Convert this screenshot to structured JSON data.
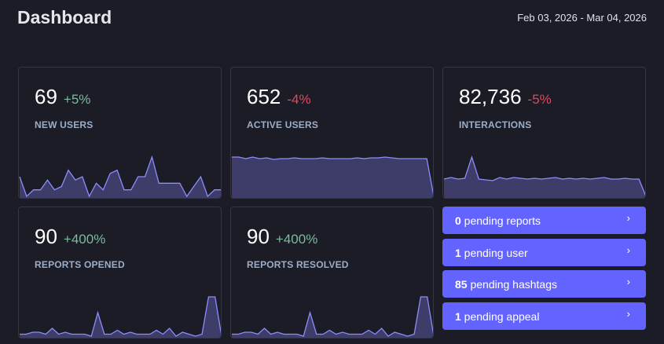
{
  "header": {
    "title": "Dashboard",
    "date_range": "Feb 03, 2026 - Mar 04, 2026"
  },
  "colors": {
    "accent": "#6364ff",
    "positive": "#79bd9a",
    "negative": "#e2475e",
    "spark_stroke": "#8c8dff",
    "spark_fill": "#3e3c68"
  },
  "cards": [
    {
      "value": "69",
      "change": "+5%",
      "trend": "pos",
      "label": "NEW USERS",
      "sparkline": [
        3,
        0,
        1,
        1,
        2.5,
        1,
        1.5,
        4,
        2.5,
        3,
        0,
        2,
        1,
        3.5,
        4,
        1,
        1,
        3,
        3,
        6,
        2,
        2,
        2,
        2,
        0,
        1.5,
        3,
        0,
        1,
        1
      ]
    },
    {
      "value": "652",
      "change": "-4%",
      "trend": "neg",
      "label": "ACTIVE USERS",
      "sparkline": [
        50,
        50,
        48,
        50,
        48,
        49,
        47,
        48,
        48,
        49,
        48,
        48,
        48,
        49,
        48,
        48,
        48,
        48,
        49,
        48,
        49,
        49,
        50,
        49,
        48,
        48,
        48,
        48,
        48,
        0
      ]
    },
    {
      "value": "82,736",
      "change": "-5%",
      "trend": "neg",
      "label": "INTERACTIONS",
      "sparkline": [
        22,
        24,
        22,
        23,
        50,
        22,
        21,
        20,
        24,
        22,
        24,
        23,
        22,
        23,
        22,
        23,
        24,
        22,
        23,
        22,
        23,
        22,
        23,
        24,
        22,
        22,
        23,
        22,
        22,
        0
      ]
    },
    {
      "value": "90",
      "change": "+400%",
      "trend": "pos",
      "label": "REPORTS OPENED",
      "sparkline": [
        1,
        1,
        2,
        2,
        1,
        4,
        1,
        2,
        1,
        1,
        1,
        0,
        12,
        1,
        1,
        3,
        1,
        2,
        1,
        1,
        1,
        3,
        1,
        4,
        0,
        2,
        1,
        0,
        1,
        20,
        20,
        0
      ]
    },
    {
      "value": "90",
      "change": "+400%",
      "trend": "pos",
      "label": "REPORTS RESOLVED",
      "sparkline": [
        1,
        1,
        2,
        2,
        1,
        4,
        1,
        2,
        1,
        1,
        1,
        0,
        12,
        1,
        1,
        3,
        1,
        2,
        1,
        1,
        1,
        3,
        1,
        4,
        0,
        2,
        1,
        0,
        1,
        20,
        20,
        0
      ]
    }
  ],
  "pending": [
    {
      "count": "0",
      "text": " pending reports"
    },
    {
      "count": "1",
      "text": " pending user"
    },
    {
      "count": "85",
      "text": " pending hashtags"
    },
    {
      "count": "1",
      "text": " pending appeal"
    }
  ],
  "chevron": "›"
}
